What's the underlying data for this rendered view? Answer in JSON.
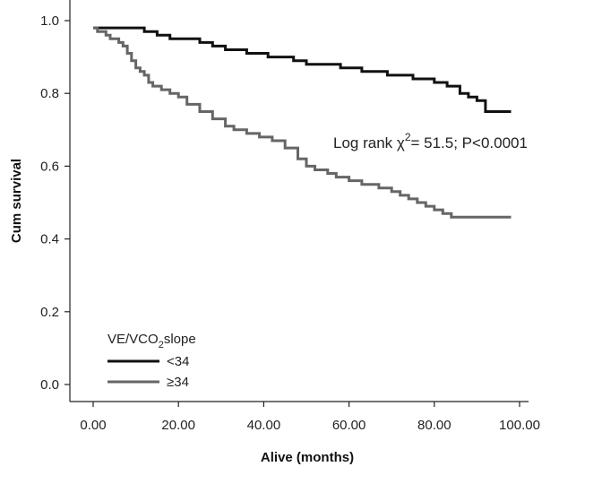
{
  "chart_data": {
    "type": "line",
    "xlabel": "Alive (months)",
    "ylabel": "Cum survival",
    "xlim": [
      0,
      100
    ],
    "ylim": [
      0,
      1.0
    ],
    "xticks": [
      "0.00",
      "20.00",
      "40.00",
      "60.00",
      "80.00",
      "100.00"
    ],
    "xtick_values": [
      0,
      20,
      40,
      60,
      80,
      100
    ],
    "yticks": [
      "0.0",
      "0.2",
      "0.4",
      "0.6",
      "0.8",
      "1.0"
    ],
    "ytick_values": [
      0,
      0.2,
      0.4,
      0.6,
      0.8,
      1.0
    ],
    "grid": false,
    "annotation": {
      "prefix": "Log rank χ",
      "sup": "2",
      "suffix": "= 51.5; P<0.0001"
    },
    "legend": {
      "title_main": "VE/VCO",
      "title_sub": "2",
      "title_rest": "slope",
      "placement": "bottom-left"
    },
    "series": [
      {
        "name": "<34",
        "color": "#111111",
        "x": [
          0,
          9,
          12,
          15,
          18,
          20,
          25,
          28,
          31,
          36,
          41,
          47,
          50,
          53,
          58,
          63,
          69,
          72,
          75,
          80,
          83,
          86,
          88,
          90,
          92,
          98
        ],
        "y": [
          0.98,
          0.98,
          0.97,
          0.96,
          0.95,
          0.95,
          0.94,
          0.93,
          0.92,
          0.91,
          0.9,
          0.89,
          0.88,
          0.88,
          0.87,
          0.86,
          0.85,
          0.85,
          0.84,
          0.83,
          0.82,
          0.8,
          0.79,
          0.78,
          0.75,
          0.75
        ]
      },
      {
        "name": "≥34",
        "color": "#666666",
        "x": [
          0,
          1,
          3,
          4,
          6,
          7,
          8,
          9,
          10,
          11,
          12,
          13,
          14,
          16,
          18,
          20,
          22,
          25,
          28,
          31,
          33,
          36,
          39,
          42,
          45,
          48,
          50,
          52,
          55,
          57,
          60,
          63,
          67,
          70,
          72,
          74,
          76,
          78,
          80,
          82,
          84,
          86,
          90,
          98
        ],
        "y": [
          0.98,
          0.97,
          0.96,
          0.95,
          0.94,
          0.93,
          0.91,
          0.89,
          0.87,
          0.86,
          0.85,
          0.83,
          0.82,
          0.81,
          0.8,
          0.79,
          0.77,
          0.75,
          0.73,
          0.71,
          0.7,
          0.69,
          0.68,
          0.67,
          0.65,
          0.62,
          0.6,
          0.59,
          0.58,
          0.57,
          0.56,
          0.55,
          0.54,
          0.53,
          0.52,
          0.51,
          0.5,
          0.49,
          0.48,
          0.47,
          0.46,
          0.46,
          0.46,
          0.46
        ]
      }
    ]
  }
}
